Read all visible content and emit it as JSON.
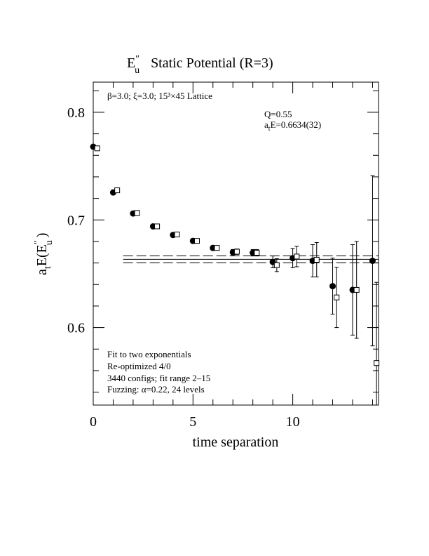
{
  "chart_data": {
    "type": "scatter",
    "title_main": "E",
    "title_sup": "″",
    "title_sub": "u",
    "title_rest": "Static Potential (R=3)",
    "xlabel": "time separation",
    "ylabel_main": "a",
    "ylabel_sub": "t",
    "ylabel_mid": "E(E",
    "ylabel_sup": "″",
    "ylabel_sub2": "u",
    "ylabel_end": ")",
    "xlim": [
      0,
      14.3
    ],
    "ylim": [
      0.528,
      0.828
    ],
    "x_ticks": [
      {
        "value": 0,
        "label": "0"
      },
      {
        "value": 5,
        "label": "5"
      },
      {
        "value": 10,
        "label": "10"
      }
    ],
    "y_ticks": [
      {
        "value": 0.6,
        "label": "0.6"
      },
      {
        "value": 0.7,
        "label": "0.7"
      },
      {
        "value": 0.8,
        "label": "0.8"
      }
    ],
    "lattice_text": "β=3.0; ξ=3.0; 15³×45 Lattice",
    "fit_q_text": "Q=0.55",
    "fit_energy_text_a": "a",
    "fit_energy_text_sub": "t",
    "fit_energy_text_rest": "E=0.6634(32)",
    "notes": [
      "Fit to two exponentials",
      "Re-optimized 4/0",
      "3440 configs; fit range 2–15",
      "Fuzzing: α=0.22, 24 levels"
    ],
    "fit": {
      "x_start": 1.5,
      "x_end": 14.3,
      "value": 0.6634,
      "error": 0.0032
    },
    "series": [
      {
        "marker": "filled-circle",
        "points": [
          {
            "x": 0,
            "y": 0.768,
            "err": 0.001
          },
          {
            "x": 1,
            "y": 0.7255,
            "err": 0.0015
          },
          {
            "x": 2,
            "y": 0.706,
            "err": 0.0015
          },
          {
            "x": 3,
            "y": 0.694,
            "err": 0.0015
          },
          {
            "x": 4,
            "y": 0.686,
            "err": 0.002
          },
          {
            "x": 5,
            "y": 0.6805,
            "err": 0.002
          },
          {
            "x": 6,
            "y": 0.674,
            "err": 0.002
          },
          {
            "x": 7,
            "y": 0.67,
            "err": 0.0025
          },
          {
            "x": 8,
            "y": 0.6695,
            "err": 0.003
          },
          {
            "x": 9,
            "y": 0.661,
            "err": 0.0055
          },
          {
            "x": 10,
            "y": 0.6645,
            "err": 0.009
          },
          {
            "x": 11,
            "y": 0.662,
            "err": 0.015
          },
          {
            "x": 12,
            "y": 0.6385,
            "err": 0.026
          },
          {
            "x": 13,
            "y": 0.635,
            "err": 0.042
          },
          {
            "x": 14,
            "y": 0.662,
            "err": 0.079
          }
        ]
      },
      {
        "marker": "open-square",
        "points": [
          {
            "x": 0.2,
            "y": 0.7665,
            "err": 0.001
          },
          {
            "x": 1.2,
            "y": 0.7275,
            "err": 0.0015
          },
          {
            "x": 2.2,
            "y": 0.7065,
            "err": 0.0015
          },
          {
            "x": 3.2,
            "y": 0.694,
            "err": 0.0015
          },
          {
            "x": 4.2,
            "y": 0.6865,
            "err": 0.002
          },
          {
            "x": 5.2,
            "y": 0.6805,
            "err": 0.002
          },
          {
            "x": 6.2,
            "y": 0.674,
            "err": 0.002
          },
          {
            "x": 7.2,
            "y": 0.6705,
            "err": 0.0025
          },
          {
            "x": 8.2,
            "y": 0.6695,
            "err": 0.003
          },
          {
            "x": 9.2,
            "y": 0.658,
            "err": 0.006
          },
          {
            "x": 10.2,
            "y": 0.666,
            "err": 0.0095
          },
          {
            "x": 11.2,
            "y": 0.663,
            "err": 0.016
          },
          {
            "x": 12.2,
            "y": 0.628,
            "err": 0.028
          },
          {
            "x": 13.2,
            "y": 0.635,
            "err": 0.045
          },
          {
            "x": 14.2,
            "y": 0.567,
            "err": 0.075
          }
        ]
      }
    ]
  }
}
